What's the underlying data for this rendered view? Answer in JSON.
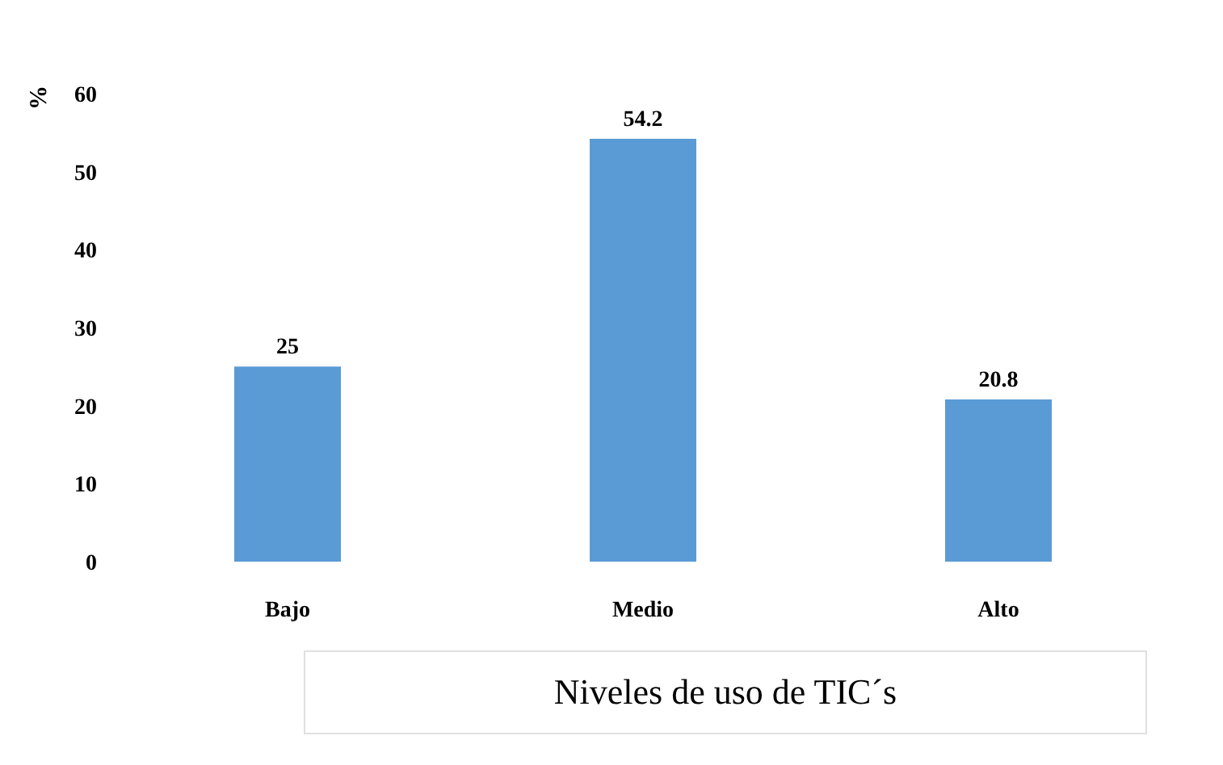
{
  "chart_data": {
    "type": "bar",
    "categories": [
      "Bajo",
      "Medio",
      "Alto"
    ],
    "values": [
      25,
      54.2,
      20.8
    ],
    "color": "#5b9bd5",
    "ylim": [
      0,
      60
    ],
    "yticks": [
      0,
      10,
      20,
      30,
      40,
      50,
      60
    ],
    "ylabel": "%",
    "xlabel": "Niveles de uso de TIC´s",
    "data_labels": true,
    "grid": false
  }
}
